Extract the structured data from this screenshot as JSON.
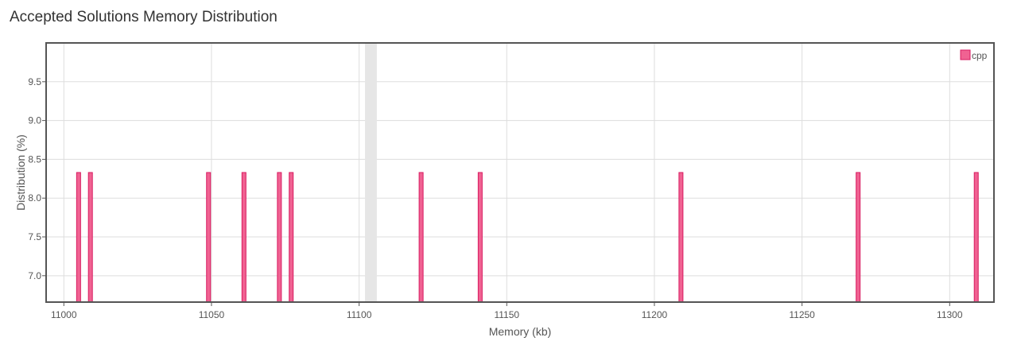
{
  "title": "Accepted Solutions Memory Distribution",
  "colors": {
    "bar_fill": "#f06292",
    "bar_stroke": "#d81b60",
    "highlight_band": "#e6e6e6",
    "grid": "#dddddd",
    "frame": "#555555"
  },
  "chart_data": {
    "type": "bar",
    "title": "Accepted Solutions Memory Distribution",
    "xlabel": "Memory (kb)",
    "ylabel": "Distribution (%)",
    "xlim": [
      10994,
      11315
    ],
    "ylim": [
      6.66,
      10.0
    ],
    "xticks": [
      11000,
      11050,
      11100,
      11150,
      11200,
      11250,
      11300
    ],
    "yticks": [
      7.0,
      7.5,
      8.0,
      8.5,
      9.0,
      9.5
    ],
    "ytick_labels": [
      "7.0",
      "7.5",
      "8.0",
      "8.5",
      "9.0",
      "9.5"
    ],
    "grid": true,
    "legend_position": "top-right",
    "highlight_range": [
      11102,
      11106
    ],
    "series": [
      {
        "name": "cpp",
        "x": [
          11005,
          11009,
          11049,
          11061,
          11073,
          11077,
          11121,
          11141,
          11209,
          11269,
          11309
        ],
        "values": [
          8.33,
          8.33,
          8.33,
          8.33,
          8.33,
          8.33,
          8.33,
          8.33,
          8.33,
          8.33,
          8.33
        ]
      }
    ]
  }
}
